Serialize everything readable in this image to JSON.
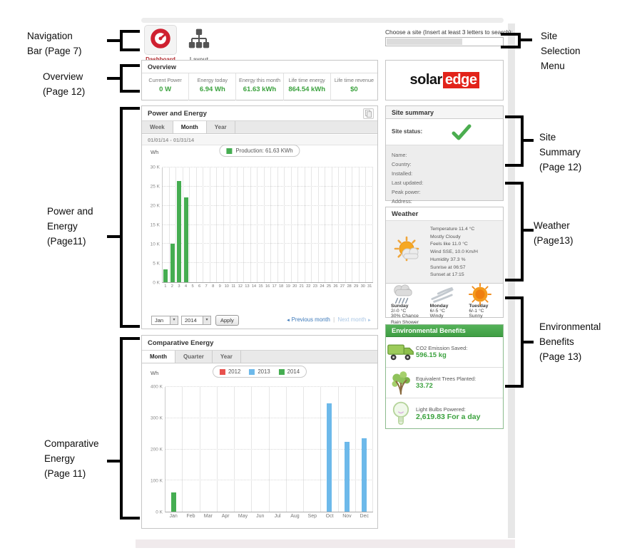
{
  "nav": {
    "items": [
      {
        "label": "Dashboard",
        "icon": "gauge-icon",
        "active": true
      },
      {
        "label": "Layout",
        "icon": "org-chart-icon",
        "active": false
      }
    ]
  },
  "site_search": {
    "label": "Choose a site (Insert at least 3 letters to search):"
  },
  "overview": {
    "title": "Overview",
    "stats": [
      {
        "label": "Current Power",
        "value": "0 W"
      },
      {
        "label": "Energy today",
        "value": "6.94 Wh"
      },
      {
        "label": "Energy this month",
        "value": "61.63 kWh"
      },
      {
        "label": "Life time energy",
        "value": "864.54 kWh"
      },
      {
        "label": "Life time revenue",
        "value": "$0"
      }
    ],
    "value_color": "#3ba23e"
  },
  "logo": {
    "part1": "solar",
    "part2": "edge",
    "brand_red": "#e2231a"
  },
  "power_energy": {
    "title": "Power and Energy",
    "tabs": [
      "Week",
      "Month",
      "Year"
    ],
    "active_tab": "Month",
    "date_range": "01/01/14 - 01/31/14",
    "unit": "Wh",
    "month_select": "Jan",
    "year_select": "2014",
    "apply_label": "Apply",
    "prev_label": "Previous month",
    "next_label": "Next month"
  },
  "site_summary": {
    "title": "Site summary",
    "status_label": "Site status:",
    "status_icon": "green-checkmark-icon",
    "fields": [
      "Name:",
      "Country:",
      "Installed:",
      "Last updated:",
      "Peak power:",
      "Address:"
    ]
  },
  "weather": {
    "title": "Weather",
    "current_icon": "sun-cloud-icon",
    "current": [
      "Temperature 11.4 °C",
      "Mostly Cloudy",
      "Feels like 11.0 °C",
      "Wind SSE, 10.0 Km/H",
      "Humidity 37.3 %",
      "Sunrise at 06:57",
      "Sunset at 17:15"
    ],
    "forecast": [
      {
        "day": "Sunday",
        "temp": "2/-0 °C",
        "desc": "30% Chance Rain Shower",
        "icon": "rain-cloud-icon"
      },
      {
        "day": "Monday",
        "temp": "6/-5 °C",
        "desc": "Windy",
        "icon": "wind-icon"
      },
      {
        "day": "Tuesday",
        "temp": "6/-1 °C",
        "desc": "Sunny",
        "icon": "sun-icon"
      }
    ]
  },
  "environmental": {
    "title": "Environmental Benefits",
    "header_green": "#47a54b",
    "items": [
      {
        "label": "CO2 Emission Saved:",
        "value": "596.15 kg",
        "icon": "truck-icon"
      },
      {
        "label": "Equivalent Trees Planted:",
        "value": "33.72",
        "icon": "tree-icon"
      },
      {
        "label": "Light Bulbs Powered:",
        "value": "2,619.83 For a day",
        "icon": "bulb-icon"
      }
    ]
  },
  "comparative": {
    "title": "Comparative Energy",
    "tabs": [
      "Month",
      "Quarter",
      "Year"
    ],
    "active_tab": "Month",
    "unit": "Wh"
  },
  "chart_data": [
    {
      "type": "bar",
      "title": "Power and Energy",
      "period": "01/01/14 - 01/31/14",
      "ylabel": "Wh",
      "ylim": [
        0,
        30000
      ],
      "ytick_labels": [
        "0 K",
        "5 K",
        "10 K",
        "15 K",
        "20 K",
        "25 K",
        "30 K"
      ],
      "grid": true,
      "legend_position": "top",
      "categories": [
        "1",
        "2",
        "3",
        "4",
        "5",
        "6",
        "7",
        "8",
        "9",
        "10",
        "11",
        "12",
        "13",
        "14",
        "15",
        "16",
        "17",
        "18",
        "19",
        "20",
        "21",
        "22",
        "23",
        "24",
        "25",
        "26",
        "27",
        "28",
        "29",
        "30",
        "31"
      ],
      "series": [
        {
          "name": "Production: 61.63 KWh",
          "color": "#45ad51",
          "values": [
            3300,
            10100,
            26500,
            22100,
            0,
            0,
            0,
            0,
            0,
            0,
            0,
            0,
            0,
            0,
            0,
            0,
            0,
            0,
            0,
            0,
            0,
            0,
            0,
            0,
            0,
            0,
            0,
            0,
            0,
            0,
            0
          ]
        }
      ]
    },
    {
      "type": "bar",
      "title": "Comparative Energy",
      "ylabel": "Wh",
      "ylim": [
        0,
        400000
      ],
      "ytick_labels": [
        "0 K",
        "100 K",
        "200 K",
        "300 K",
        "400 K"
      ],
      "grid": true,
      "legend_position": "top",
      "categories": [
        "Jan",
        "Feb",
        "Mar",
        "Apr",
        "May",
        "Jun",
        "Jul",
        "Aug",
        "Sep",
        "Oct",
        "Nov",
        "Dec"
      ],
      "series": [
        {
          "name": "2012",
          "color": "#e8514d",
          "values": [
            0,
            0,
            0,
            0,
            0,
            0,
            0,
            0,
            0,
            0,
            0,
            0
          ]
        },
        {
          "name": "2013",
          "color": "#6db9ea",
          "values": [
            0,
            0,
            0,
            0,
            0,
            0,
            0,
            0,
            0,
            348000,
            225000,
            236000
          ]
        },
        {
          "name": "2014",
          "color": "#45ad51",
          "values": [
            62000,
            0,
            0,
            0,
            0,
            0,
            0,
            0,
            0,
            0,
            0,
            0
          ]
        }
      ]
    }
  ],
  "callouts": {
    "nav_bar": {
      "lines": [
        "Navigation",
        "Bar (Page 7)"
      ]
    },
    "overview": {
      "lines": [
        "Overview",
        "(Page 12)"
      ]
    },
    "power_energy": {
      "lines": [
        "Power and",
        "Energy",
        "(Page11)"
      ]
    },
    "comparative": {
      "lines": [
        "Comparative",
        "Energy",
        "(Page 11)"
      ]
    },
    "site_selection": {
      "lines": [
        "Site",
        "Selection",
        "Menu"
      ]
    },
    "site_summary": {
      "lines": [
        "Site",
        "Summary",
        "(Page 12)"
      ]
    },
    "weather": {
      "lines": [
        "Weather",
        "(Page13)"
      ]
    },
    "environmental": {
      "lines": [
        "Environmental",
        "Benefits",
        "(Page 13)"
      ]
    }
  }
}
